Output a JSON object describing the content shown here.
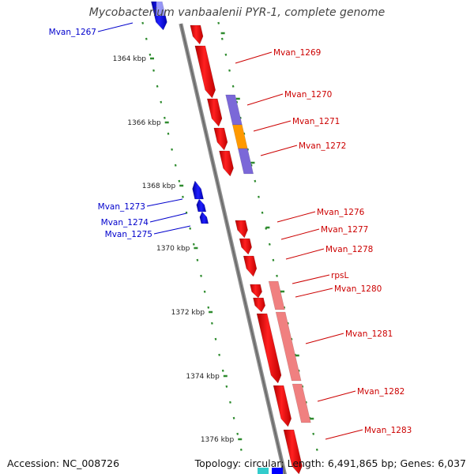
{
  "title": "Mycobacterium vanbaalenii PYR-1, complete genome",
  "accession": "Accession: NC_008726",
  "summary": "Topology: circular; Length: 6,491,865 bp; Genes: 6,037",
  "colors": {
    "forward_gene": "#ff0000",
    "reverse_gene": "#0000ff",
    "forward_label": "#cc0000",
    "reverse_label": "#0000cc",
    "backbone": "#888888",
    "scale_dots": "#2e8b2e",
    "cog_purple": "#7b68d8",
    "cog_orange": "#ff9900",
    "cog_pink": "#f08080"
  },
  "scale_labels": [
    "1364 kbp",
    "1366 kbp",
    "1368 kbp",
    "1370 kbp",
    "1372 kbp",
    "1374 kbp",
    "1376 kbp"
  ],
  "forward_genes": [
    {
      "label": "Mvan_1269"
    },
    {
      "label": "Mvan_1270"
    },
    {
      "label": "Mvan_1271"
    },
    {
      "label": "Mvan_1272"
    },
    {
      "label": "Mvan_1276"
    },
    {
      "label": "Mvan_1277"
    },
    {
      "label": "Mvan_1278"
    },
    {
      "label": "rpsL"
    },
    {
      "label": "Mvan_1280"
    },
    {
      "label": "Mvan_1281"
    },
    {
      "label": "Mvan_1282"
    },
    {
      "label": "Mvan_1283"
    }
  ],
  "reverse_genes": [
    {
      "label": "Mvan_1267"
    },
    {
      "label": "Mvan_1273"
    },
    {
      "label": "Mvan_1274"
    },
    {
      "label": "Mvan_1275"
    }
  ]
}
